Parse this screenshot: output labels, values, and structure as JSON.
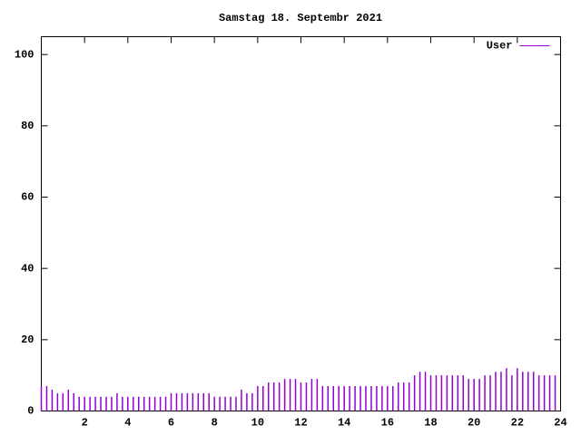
{
  "chart_data": {
    "type": "impulse",
    "title": "Samstag 18. Septembr 2021",
    "series": [
      {
        "name": "User",
        "color": "#9400d3",
        "x": [
          0,
          0.25,
          0.5,
          0.75,
          1,
          1.25,
          1.5,
          1.75,
          2,
          2.25,
          2.5,
          2.75,
          3,
          3.25,
          3.5,
          3.75,
          4,
          4.25,
          4.5,
          4.75,
          5,
          5.25,
          5.5,
          5.75,
          6,
          6.25,
          6.5,
          6.75,
          7,
          7.25,
          7.5,
          7.75,
          8,
          8.25,
          8.5,
          8.75,
          9,
          9.25,
          9.5,
          9.75,
          10,
          10.25,
          10.5,
          10.75,
          11,
          11.25,
          11.5,
          11.75,
          12,
          12.25,
          12.5,
          12.75,
          13,
          13.25,
          13.5,
          13.75,
          14,
          14.25,
          14.5,
          14.75,
          15,
          15.25,
          15.5,
          15.75,
          16,
          16.25,
          16.5,
          16.75,
          17,
          17.25,
          17.5,
          17.75,
          18,
          18.25,
          18.5,
          18.75,
          19,
          19.25,
          19.5,
          19.75,
          20,
          20.25,
          20.5,
          20.75,
          21,
          21.25,
          21.5,
          21.75,
          22,
          22.25,
          22.5,
          22.75,
          23,
          23.25,
          23.5,
          23.75
        ],
        "values": [
          7,
          7,
          6,
          5,
          5,
          6,
          5,
          4,
          4,
          4,
          4,
          4,
          4,
          4,
          5,
          4,
          4,
          4,
          4,
          4,
          4,
          4,
          4,
          4,
          5,
          5,
          5,
          5,
          5,
          5,
          5,
          5,
          4,
          4,
          4,
          4,
          4,
          6,
          5,
          5,
          7,
          7,
          8,
          8,
          8,
          9,
          9,
          9,
          8,
          8,
          9,
          9,
          7,
          7,
          7,
          7,
          7,
          7,
          7,
          7,
          7,
          7,
          7,
          7,
          7,
          7,
          8,
          8,
          8,
          10,
          11,
          11,
          10,
          10,
          10,
          10,
          10,
          10,
          10,
          9,
          9,
          9,
          10,
          10,
          11,
          11,
          12,
          10,
          12,
          11,
          11,
          11,
          10,
          10,
          10,
          10
        ]
      }
    ],
    "xlim": [
      0,
      24
    ],
    "xticks": [
      2,
      4,
      6,
      8,
      10,
      12,
      14,
      16,
      18,
      20,
      22,
      24
    ],
    "ylim": [
      0,
      105
    ],
    "yticks": [
      0,
      20,
      40,
      60,
      80,
      100
    ],
    "legend": "upper right"
  }
}
